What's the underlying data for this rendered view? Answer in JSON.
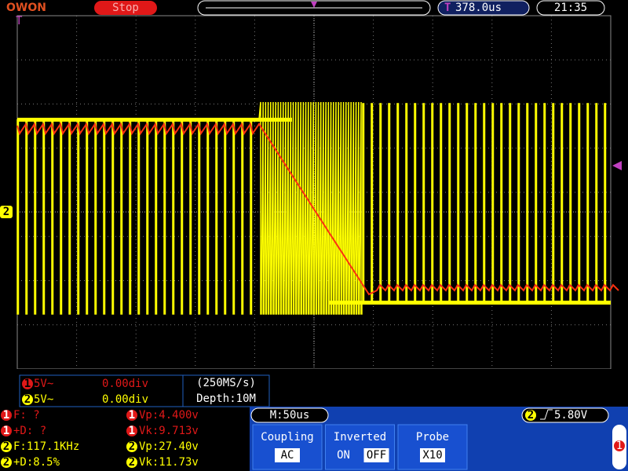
{
  "header": {
    "logo": "OWON",
    "status": "Stop",
    "trigger_position": "378.0us",
    "time": "21:35"
  },
  "channel_panel": {
    "rows": [
      {
        "channel": "1",
        "scale": "5V~",
        "offset": "0.00div"
      },
      {
        "channel": "2",
        "scale": "5V~",
        "offset": "0.00div"
      }
    ],
    "sample_rate": "(250MS/s)",
    "depth": "Depth:10M"
  },
  "measurements": [
    {
      "channel": "1",
      "text": "F:  ?"
    },
    {
      "channel": "1",
      "text": "+D:  ?"
    },
    {
      "channel": "2",
      "text": "F:117.1KHz"
    },
    {
      "channel": "2",
      "text": "+D:8.5%"
    },
    {
      "channel": "1",
      "text": "Vp:4.400v"
    },
    {
      "channel": "1",
      "text": "Vk:9.713v"
    },
    {
      "channel": "2",
      "text": "Vp:27.40v"
    },
    {
      "channel": "2",
      "text": "Vk:11.73v"
    }
  ],
  "timebase": "M:50us",
  "trigger": {
    "channel": "2",
    "level": "5.80V"
  },
  "menu": [
    {
      "label": "Coupling",
      "options": [
        "AC"
      ]
    },
    {
      "label": "Inverted",
      "options": [
        "ON",
        "OFF"
      ]
    },
    {
      "label": "Probe",
      "options": [
        "X10"
      ]
    }
  ],
  "markers": {
    "ch2_level": "2",
    "menu_page": "1"
  }
}
